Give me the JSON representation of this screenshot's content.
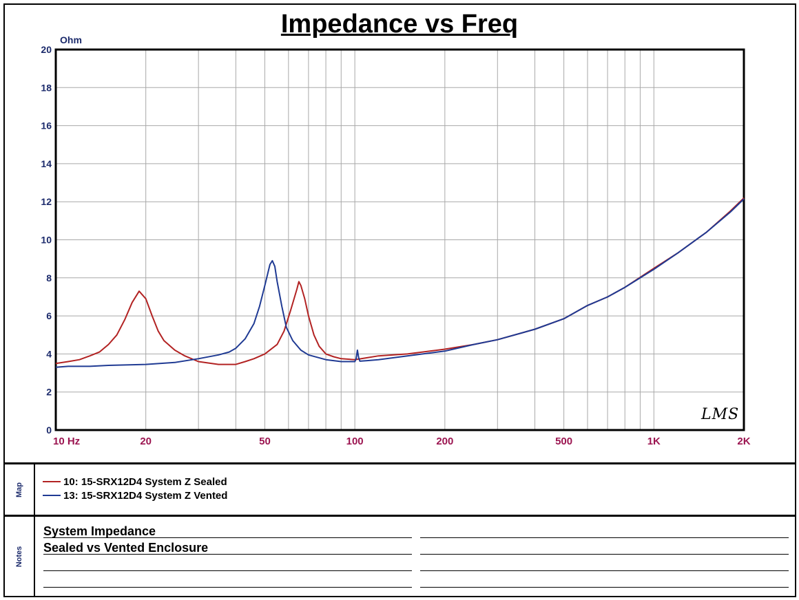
{
  "chart_data": {
    "type": "line",
    "title": "Impedance vs Freq",
    "ylabel": "Ohm",
    "xlabel": "",
    "xscale": "log",
    "xlim": [
      10,
      2000
    ],
    "ylim": [
      0,
      20
    ],
    "yticks": [
      0,
      2,
      4,
      6,
      8,
      10,
      12,
      14,
      16,
      18,
      20
    ],
    "xticks": [
      {
        "value": 10,
        "label": "10 Hz"
      },
      {
        "value": 20,
        "label": "20"
      },
      {
        "value": 50,
        "label": "50"
      },
      {
        "value": 100,
        "label": "100"
      },
      {
        "value": 200,
        "label": "200"
      },
      {
        "value": 500,
        "label": "500"
      },
      {
        "value": 1000,
        "label": "1K"
      },
      {
        "value": 2000,
        "label": "2K"
      }
    ],
    "grid": true,
    "series": [
      {
        "name": "10: 15-SRX12D4 System Z Sealed",
        "color": "#b22222",
        "points": [
          [
            10,
            3.5
          ],
          [
            11,
            3.6
          ],
          [
            12,
            3.7
          ],
          [
            13,
            3.9
          ],
          [
            14,
            4.1
          ],
          [
            15,
            4.5
          ],
          [
            16,
            5.0
          ],
          [
            17,
            5.8
          ],
          [
            18,
            6.7
          ],
          [
            19,
            7.3
          ],
          [
            20,
            6.9
          ],
          [
            21,
            6.0
          ],
          [
            22,
            5.2
          ],
          [
            23,
            4.7
          ],
          [
            25,
            4.2
          ],
          [
            27,
            3.9
          ],
          [
            30,
            3.6
          ],
          [
            35,
            3.45
          ],
          [
            40,
            3.45
          ],
          [
            43,
            3.6
          ],
          [
            46,
            3.75
          ],
          [
            50,
            4.0
          ],
          [
            55,
            4.5
          ],
          [
            58,
            5.2
          ],
          [
            61,
            6.3
          ],
          [
            64,
            7.4
          ],
          [
            65,
            7.8
          ],
          [
            66,
            7.6
          ],
          [
            68,
            6.9
          ],
          [
            70,
            6.0
          ],
          [
            73,
            5.0
          ],
          [
            76,
            4.4
          ],
          [
            80,
            4.0
          ],
          [
            85,
            3.85
          ],
          [
            90,
            3.75
          ],
          [
            100,
            3.7
          ],
          [
            110,
            3.8
          ],
          [
            120,
            3.9
          ],
          [
            150,
            4.0
          ],
          [
            200,
            4.25
          ],
          [
            250,
            4.5
          ],
          [
            300,
            4.75
          ],
          [
            400,
            5.3
          ],
          [
            500,
            5.85
          ],
          [
            600,
            6.55
          ],
          [
            700,
            7.0
          ],
          [
            800,
            7.5
          ],
          [
            1000,
            8.5
          ],
          [
            1200,
            9.3
          ],
          [
            1500,
            10.4
          ],
          [
            1800,
            11.5
          ],
          [
            2000,
            12.2
          ]
        ]
      },
      {
        "name": "13: 15-SRX12D4 System Z Vented",
        "color": "#1f3a93",
        "points": [
          [
            10,
            3.3
          ],
          [
            11,
            3.35
          ],
          [
            13,
            3.35
          ],
          [
            15,
            3.4
          ],
          [
            20,
            3.45
          ],
          [
            25,
            3.55
          ],
          [
            30,
            3.75
          ],
          [
            35,
            3.95
          ],
          [
            38,
            4.1
          ],
          [
            40,
            4.3
          ],
          [
            43,
            4.8
          ],
          [
            46,
            5.6
          ],
          [
            48,
            6.5
          ],
          [
            50,
            7.6
          ],
          [
            52,
            8.7
          ],
          [
            53,
            8.9
          ],
          [
            54,
            8.6
          ],
          [
            55,
            7.8
          ],
          [
            57,
            6.5
          ],
          [
            59,
            5.4
          ],
          [
            62,
            4.7
          ],
          [
            66,
            4.2
          ],
          [
            70,
            3.95
          ],
          [
            80,
            3.7
          ],
          [
            90,
            3.6
          ],
          [
            100,
            3.6
          ],
          [
            101,
            3.75
          ],
          [
            102,
            4.2
          ],
          [
            103,
            3.8
          ],
          [
            104,
            3.62
          ],
          [
            110,
            3.65
          ],
          [
            120,
            3.7
          ],
          [
            150,
            3.9
          ],
          [
            200,
            4.15
          ],
          [
            250,
            4.5
          ],
          [
            300,
            4.75
          ],
          [
            400,
            5.3
          ],
          [
            500,
            5.85
          ],
          [
            600,
            6.55
          ],
          [
            700,
            7.0
          ],
          [
            800,
            7.5
          ],
          [
            1000,
            8.45
          ],
          [
            1200,
            9.3
          ],
          [
            1500,
            10.4
          ],
          [
            1800,
            11.45
          ],
          [
            2000,
            12.15
          ]
        ]
      }
    ]
  },
  "map_label": "Map",
  "notes_label": "Notes",
  "notes": [
    "System Impedance",
    "Sealed vs Vented Enclosure"
  ],
  "signature": "LMS"
}
